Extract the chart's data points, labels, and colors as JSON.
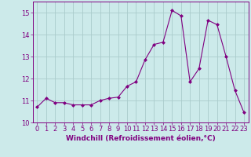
{
  "x": [
    0,
    1,
    2,
    3,
    4,
    5,
    6,
    7,
    8,
    9,
    10,
    11,
    12,
    13,
    14,
    15,
    16,
    17,
    18,
    19,
    20,
    21,
    22,
    23
  ],
  "y": [
    10.7,
    11.1,
    10.9,
    10.9,
    10.8,
    10.8,
    10.8,
    11.0,
    11.1,
    11.15,
    11.65,
    11.85,
    12.85,
    13.55,
    13.65,
    15.1,
    14.85,
    11.85,
    12.45,
    14.65,
    14.45,
    13.0,
    11.45,
    10.45
  ],
  "line_color": "#800080",
  "marker": "D",
  "marker_size": 2,
  "bg_color": "#cceaea",
  "grid_color": "#aacccc",
  "xlabel": "Windchill (Refroidissement éolien,°C)",
  "ylim": [
    10,
    15.5
  ],
  "xlim": [
    -0.5,
    23.5
  ],
  "yticks": [
    10,
    11,
    12,
    13,
    14,
    15
  ],
  "xticks": [
    0,
    1,
    2,
    3,
    4,
    5,
    6,
    7,
    8,
    9,
    10,
    11,
    12,
    13,
    14,
    15,
    16,
    17,
    18,
    19,
    20,
    21,
    22,
    23
  ],
  "xlabel_fontsize": 6.5,
  "tick_fontsize": 6,
  "label_color": "#800080"
}
